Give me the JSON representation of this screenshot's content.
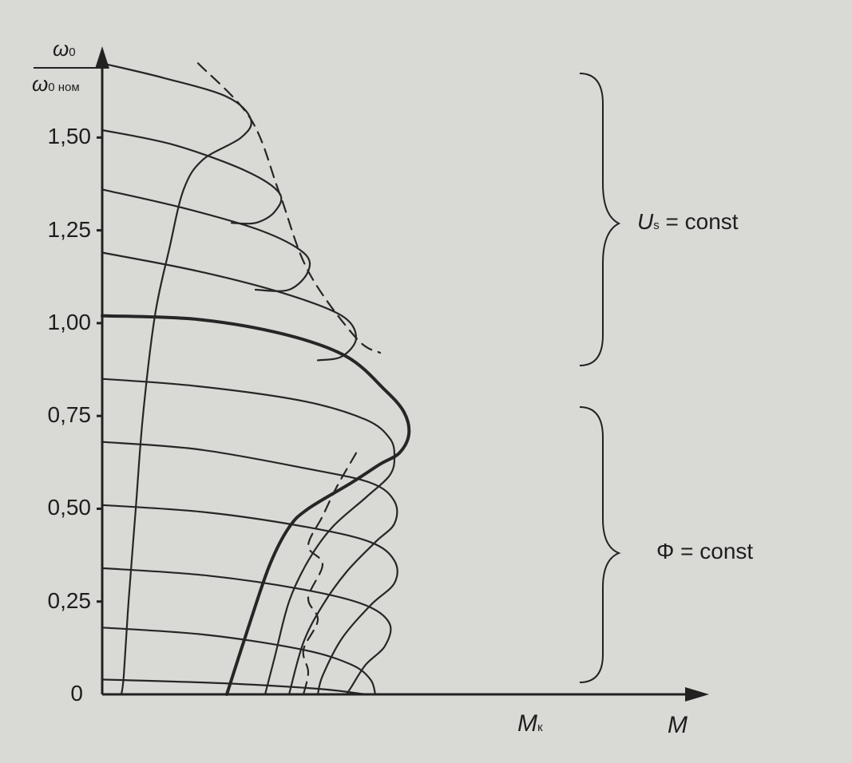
{
  "chart_data": {
    "type": "line",
    "title": "",
    "xlabel": "M",
    "ylabel": "ω0/ω0 ном",
    "ylabel_parts": {
      "num": "ω",
      "num_sub": "0",
      "den": "ω",
      "den_sub": "0 ном"
    },
    "xlabel_marker": {
      "symbol": "M",
      "sub": "к"
    },
    "y_ticks": [
      "0",
      "0,25",
      "0,50",
      "0,75",
      "1,00",
      "1,25",
      "1,50"
    ],
    "y_tick_values": [
      0,
      0.25,
      0.5,
      0.75,
      1.0,
      1.25,
      1.5
    ],
    "ylim": [
      0,
      1.72
    ],
    "xlim": [
      0,
      1.2
    ],
    "grid": false,
    "annotations": {
      "upper_region": {
        "symbol": "U",
        "sub": "s",
        "rest": " = const",
        "y_range": [
          0.95,
          1.75
        ]
      },
      "lower_region": {
        "text": "Φ = const",
        "y_range": [
          0.02,
          0.82
        ]
      }
    },
    "series": [
      {
        "role": "upper",
        "values": [
          [
            0,
            1.7
          ],
          [
            0.13,
            1.66
          ],
          [
            0.26,
            1.61
          ],
          [
            0.31,
            1.55
          ],
          [
            0.29,
            1.5
          ],
          [
            0.21,
            1.44
          ],
          [
            0.17,
            1.36
          ],
          [
            0.14,
            1.2
          ],
          [
            0.11,
            1.02
          ],
          [
            0.085,
            0.75
          ],
          [
            0.07,
            0.5
          ],
          [
            0.055,
            0.25
          ],
          [
            0.045,
            0.05
          ],
          [
            0.04,
            0
          ]
        ]
      },
      {
        "role": "upper",
        "values": [
          [
            0,
            1.52
          ],
          [
            0.15,
            1.48
          ],
          [
            0.3,
            1.41
          ],
          [
            0.37,
            1.35
          ],
          [
            0.36,
            1.3
          ],
          [
            0.32,
            1.27
          ],
          [
            0.27,
            1.27
          ]
        ]
      },
      {
        "role": "upper",
        "values": [
          [
            0,
            1.36
          ],
          [
            0.17,
            1.31
          ],
          [
            0.33,
            1.25
          ],
          [
            0.42,
            1.19
          ],
          [
            0.43,
            1.14
          ],
          [
            0.39,
            1.09
          ],
          [
            0.32,
            1.09
          ]
        ]
      },
      {
        "role": "upper",
        "values": [
          [
            0,
            1.19
          ],
          [
            0.2,
            1.14
          ],
          [
            0.38,
            1.08
          ],
          [
            0.5,
            1.02
          ],
          [
            0.53,
            0.96
          ],
          [
            0.5,
            0.91
          ],
          [
            0.45,
            0.9
          ]
        ]
      },
      {
        "role": "nominal",
        "values": [
          [
            0,
            1.02
          ],
          [
            0.2,
            1.01
          ],
          [
            0.38,
            0.97
          ],
          [
            0.51,
            0.91
          ],
          [
            0.59,
            0.82
          ],
          [
            0.63,
            0.76
          ],
          [
            0.64,
            0.7
          ],
          [
            0.62,
            0.65
          ],
          [
            0.58,
            0.62
          ],
          [
            0.52,
            0.57
          ],
          [
            0.43,
            0.5
          ],
          [
            0.39,
            0.45
          ],
          [
            0.35,
            0.35
          ],
          [
            0.31,
            0.2
          ],
          [
            0.26,
            0
          ]
        ]
      },
      {
        "role": "lower",
        "values": [
          [
            0,
            0.85
          ],
          [
            0.2,
            0.83
          ],
          [
            0.42,
            0.79
          ],
          [
            0.55,
            0.74
          ],
          [
            0.6,
            0.69
          ],
          [
            0.61,
            0.64
          ],
          [
            0.6,
            0.59
          ],
          [
            0.55,
            0.53
          ],
          [
            0.48,
            0.45
          ],
          [
            0.43,
            0.36
          ],
          [
            0.39,
            0.25
          ],
          [
            0.36,
            0.1
          ],
          [
            0.34,
            0
          ]
        ]
      },
      {
        "role": "lower",
        "values": [
          [
            0,
            0.68
          ],
          [
            0.2,
            0.66
          ],
          [
            0.42,
            0.61
          ],
          [
            0.56,
            0.57
          ],
          [
            0.61,
            0.52
          ],
          [
            0.61,
            0.46
          ],
          [
            0.57,
            0.41
          ],
          [
            0.51,
            0.33
          ],
          [
            0.46,
            0.24
          ],
          [
            0.42,
            0.14
          ],
          [
            0.39,
            0
          ]
        ]
      },
      {
        "role": "lower",
        "values": [
          [
            0,
            0.51
          ],
          [
            0.22,
            0.49
          ],
          [
            0.43,
            0.45
          ],
          [
            0.56,
            0.41
          ],
          [
            0.61,
            0.36
          ],
          [
            0.61,
            0.3
          ],
          [
            0.56,
            0.24
          ],
          [
            0.5,
            0.15
          ],
          [
            0.46,
            0.05
          ],
          [
            0.45,
            0
          ]
        ]
      },
      {
        "role": "lower",
        "values": [
          [
            0,
            0.34
          ],
          [
            0.22,
            0.32
          ],
          [
            0.43,
            0.28
          ],
          [
            0.55,
            0.24
          ],
          [
            0.6,
            0.19
          ],
          [
            0.59,
            0.13
          ],
          [
            0.55,
            0.08
          ],
          [
            0.52,
            0.02
          ],
          [
            0.51,
            0
          ]
        ]
      },
      {
        "role": "lower",
        "values": [
          [
            0,
            0.18
          ],
          [
            0.22,
            0.16
          ],
          [
            0.42,
            0.12
          ],
          [
            0.52,
            0.08
          ],
          [
            0.56,
            0.04
          ],
          [
            0.57,
            0
          ]
        ]
      },
      {
        "role": "lower",
        "values": [
          [
            0,
            0.04
          ],
          [
            0.25,
            0.03
          ],
          [
            0.45,
            0.015
          ],
          [
            0.55,
            0
          ]
        ]
      },
      {
        "role": "envelope-dashed",
        "values": [
          [
            0.2,
            1.7
          ],
          [
            0.31,
            1.55
          ],
          [
            0.37,
            1.35
          ],
          [
            0.43,
            1.14
          ],
          [
            0.53,
            0.96
          ],
          [
            0.58,
            0.92
          ]
        ]
      },
      {
        "role": "envelope-dashed",
        "values": [
          [
            0.53,
            0.65
          ],
          [
            0.49,
            0.56
          ],
          [
            0.46,
            0.48
          ],
          [
            0.43,
            0.4
          ],
          [
            0.46,
            0.35
          ],
          [
            0.43,
            0.26
          ],
          [
            0.45,
            0.2
          ],
          [
            0.42,
            0.12
          ],
          [
            0.43,
            0.06
          ],
          [
            0.42,
            0
          ]
        ]
      }
    ]
  }
}
